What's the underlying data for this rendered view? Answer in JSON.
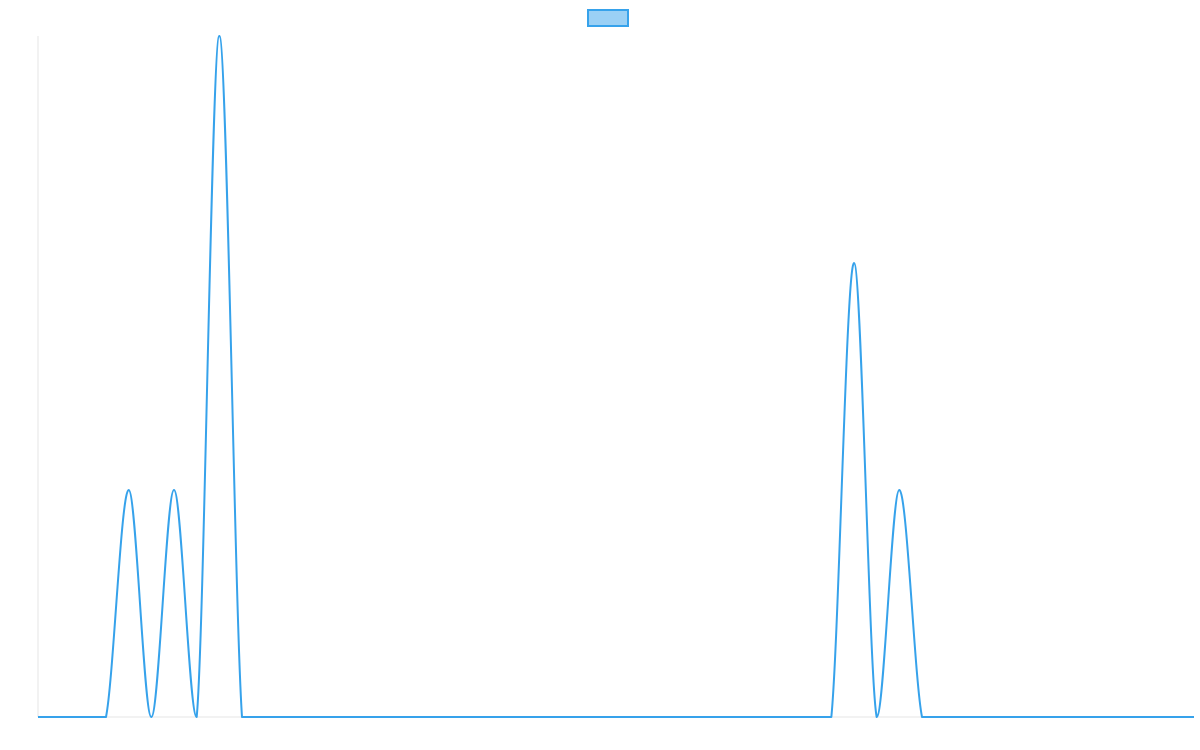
{
  "chart_data": {
    "type": "line",
    "title": "",
    "xlabel": "",
    "ylabel": "",
    "x": [
      0,
      1,
      2,
      3,
      4,
      5,
      6,
      7,
      8,
      9,
      10,
      11,
      12,
      13,
      14,
      15,
      16,
      17,
      18,
      19,
      20,
      21,
      22,
      23,
      24,
      25,
      26,
      27,
      28,
      29,
      30,
      31,
      32,
      33,
      34,
      35,
      36,
      37,
      38,
      39,
      40,
      41,
      42,
      43,
      44,
      45,
      46,
      47,
      48,
      49,
      50,
      51
    ],
    "series": [
      {
        "name": "",
        "values": [
          0,
          0,
          0,
          0,
          1,
          0,
          1,
          0,
          3,
          0,
          0,
          0,
          0,
          0,
          0,
          0,
          0,
          0,
          0,
          0,
          0,
          0,
          0,
          0,
          0,
          0,
          0,
          0,
          0,
          0,
          0,
          0,
          0,
          0,
          0,
          0,
          2,
          0,
          1,
          0,
          0,
          0,
          0,
          0,
          0,
          0,
          0,
          0,
          0,
          0,
          0,
          0
        ]
      }
    ],
    "ylim": [
      0,
      3
    ],
    "xlim": [
      0,
      51
    ],
    "grid": false,
    "legend": "top-center",
    "colors": {
      "line": "#36a2eb",
      "legend_fill": "#9ad0f5",
      "axis": "#e5e5e5"
    }
  }
}
